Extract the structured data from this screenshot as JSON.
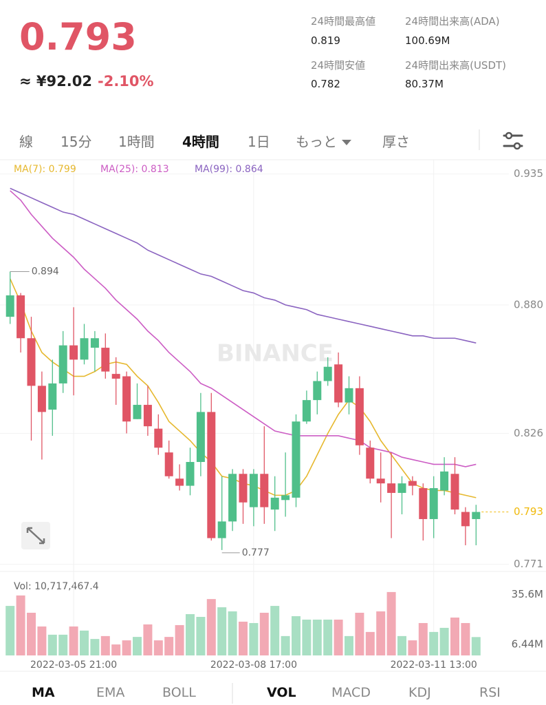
{
  "header": {
    "price": "0.793",
    "fiat": "≈ ¥92.02",
    "change": "-2.10%",
    "stats": [
      {
        "label": "24時間最高値",
        "value": "0.819"
      },
      {
        "label": "24時間出来高(ADA)",
        "value": "100.69M"
      },
      {
        "label": "24時間安値",
        "value": "0.782"
      },
      {
        "label": "24時間出来高(USDT)",
        "value": "80.37M"
      }
    ]
  },
  "intervals": [
    "線",
    "15分",
    "1時間",
    "4時間",
    "1日",
    "もっと",
    "厚さ"
  ],
  "active_interval": 3,
  "indicator_tabs": [
    "MA",
    "EMA",
    "BOLL"
  ],
  "sub_tabs": [
    "VOL",
    "MACD",
    "KDJ",
    "RSI"
  ],
  "chart_data": [
    {
      "type": "candlestick",
      "watermark": "BINANCE",
      "up_color": "#4fbf8a",
      "down_color": "#e05565",
      "last_color": "#f0b90b",
      "categories": [
        null,
        null,
        null,
        null,
        null,
        null,
        "2022-03-05 21:00",
        null,
        null,
        null,
        null,
        null,
        null,
        null,
        null,
        null,
        null,
        null,
        null,
        null,
        null,
        null,
        null,
        "2022-03-08 17:00",
        null,
        null,
        null,
        null,
        null,
        null,
        null,
        null,
        null,
        null,
        null,
        null,
        null,
        null,
        null,
        null,
        "2022-03-11 13:00",
        null,
        null,
        null,
        null
      ],
      "open": [
        0.875,
        0.884,
        0.866,
        0.846,
        0.836,
        0.847,
        0.863,
        0.857,
        0.862,
        0.862,
        0.851,
        0.85,
        0.832,
        0.838,
        0.828,
        0.818,
        0.807,
        0.804,
        0.814,
        0.835,
        0.782,
        0.789,
        0.809,
        0.795,
        0.809,
        0.794,
        0.798,
        0.799,
        0.831,
        0.84,
        0.848,
        0.855,
        0.839,
        0.845,
        0.82,
        0.807,
        0.805,
        0.801,
        0.806,
        0.803,
        0.79,
        0.802,
        0.809,
        0.793,
        0.79
      ],
      "high": [
        0.894,
        0.885,
        0.875,
        0.852,
        0.857,
        0.869,
        0.879,
        0.872,
        0.869,
        0.868,
        0.858,
        0.852,
        0.847,
        0.846,
        0.834,
        0.823,
        0.813,
        0.82,
        0.843,
        0.843,
        0.808,
        0.811,
        0.811,
        0.811,
        0.829,
        0.808,
        0.818,
        0.834,
        0.844,
        0.852,
        0.858,
        0.86,
        0.85,
        0.85,
        0.823,
        0.818,
        0.818,
        0.808,
        0.808,
        0.805,
        0.808,
        0.816,
        0.816,
        0.795,
        0.796
      ],
      "low": [
        0.872,
        0.86,
        0.823,
        0.815,
        0.825,
        0.843,
        0.842,
        0.855,
        0.852,
        0.849,
        0.838,
        0.826,
        0.832,
        0.825,
        0.817,
        0.807,
        0.802,
        0.8,
        0.808,
        0.781,
        0.777,
        0.785,
        0.788,
        0.787,
        0.788,
        0.785,
        0.791,
        0.795,
        0.83,
        0.834,
        0.846,
        0.837,
        0.834,
        0.817,
        0.805,
        0.797,
        0.782,
        0.792,
        0.8,
        0.781,
        0.782,
        0.8,
        0.792,
        0.779,
        0.779
      ],
      "close": [
        0.884,
        0.866,
        0.846,
        0.835,
        0.847,
        0.863,
        0.857,
        0.866,
        0.866,
        0.852,
        0.849,
        0.831,
        0.838,
        0.829,
        0.82,
        0.808,
        0.804,
        0.814,
        0.835,
        0.782,
        0.789,
        0.809,
        0.797,
        0.809,
        0.795,
        0.799,
        0.8,
        0.831,
        0.84,
        0.848,
        0.854,
        0.839,
        0.845,
        0.821,
        0.807,
        0.805,
        0.801,
        0.805,
        0.804,
        0.79,
        0.803,
        0.81,
        0.794,
        0.787,
        0.793
      ],
      "series": [
        {
          "name": "MA(7): 0.799",
          "color": "#e6b82e",
          "values": [
            0.891,
            0.881,
            0.869,
            0.86,
            0.856,
            0.853,
            0.85,
            0.85,
            0.852,
            0.855,
            0.856,
            0.855,
            0.85,
            0.846,
            0.839,
            0.831,
            0.827,
            0.823,
            0.818,
            0.814,
            0.808,
            0.807,
            0.805,
            0.804,
            0.802,
            0.8,
            0.8,
            0.802,
            0.808,
            0.817,
            0.826,
            0.834,
            0.84,
            0.837,
            0.831,
            0.823,
            0.817,
            0.811,
            0.805,
            0.803,
            0.802,
            0.802,
            0.801,
            0.8,
            0.799
          ]
        },
        {
          "name": "MA(25): 0.813",
          "color": "#cc5cc4",
          "values": [
            0.928,
            0.924,
            0.918,
            0.913,
            0.908,
            0.904,
            0.9,
            0.895,
            0.891,
            0.887,
            0.882,
            0.878,
            0.874,
            0.869,
            0.865,
            0.86,
            0.856,
            0.852,
            0.847,
            0.845,
            0.842,
            0.839,
            0.836,
            0.833,
            0.83,
            0.827,
            0.826,
            0.825,
            0.825,
            0.825,
            0.825,
            0.825,
            0.824,
            0.823,
            0.82,
            0.819,
            0.818,
            0.816,
            0.815,
            0.814,
            0.813,
            0.813,
            0.813,
            0.812,
            0.813
          ]
        },
        {
          "name": "MA(99): 0.864",
          "color": "#8a63c0",
          "values": [
            0.929,
            0.927,
            0.925,
            0.923,
            0.921,
            0.919,
            0.918,
            0.916,
            0.914,
            0.912,
            0.91,
            0.908,
            0.906,
            0.903,
            0.901,
            0.899,
            0.897,
            0.895,
            0.893,
            0.892,
            0.89,
            0.888,
            0.886,
            0.885,
            0.883,
            0.882,
            0.88,
            0.879,
            0.878,
            0.876,
            0.875,
            0.874,
            0.873,
            0.872,
            0.871,
            0.87,
            0.869,
            0.868,
            0.867,
            0.867,
            0.866,
            0.866,
            0.866,
            0.865,
            0.864
          ]
        }
      ],
      "ylim": [
        0.768,
        0.941
      ],
      "yticks": [
        0.935,
        {
          "value": 0.88,
          "label": "0.880"
        },
        0.826,
        0.771
      ],
      "grid": true
    },
    {
      "type": "bar",
      "title": "Vol: 10,717,467.4",
      "up_color": "#a8dfc3",
      "down_color": "#f2a9b4",
      "values": [
        28900000,
        35000000,
        24900000,
        16900000,
        12100000,
        12100000,
        16900000,
        14500000,
        9600000,
        11300000,
        6400000,
        8800000,
        10800000,
        18100000,
        8800000,
        10800000,
        17700000,
        24100000,
        22500000,
        32900000,
        28100000,
        25700000,
        19700000,
        18900000,
        24900000,
        28900000,
        11300000,
        22900000,
        20900000,
        20900000,
        20900000,
        20900000,
        11300000,
        24900000,
        13700000,
        25700000,
        37000000,
        11300000,
        8800000,
        18900000,
        13700000,
        16100000,
        22100000,
        18900000,
        10717467.4
      ],
      "ylim": [
        0,
        45000000
      ],
      "yticks": [
        {
          "value": 35600000,
          "label": "35.6M"
        },
        {
          "value": 6440000,
          "label": "6.44M"
        }
      ]
    }
  ]
}
